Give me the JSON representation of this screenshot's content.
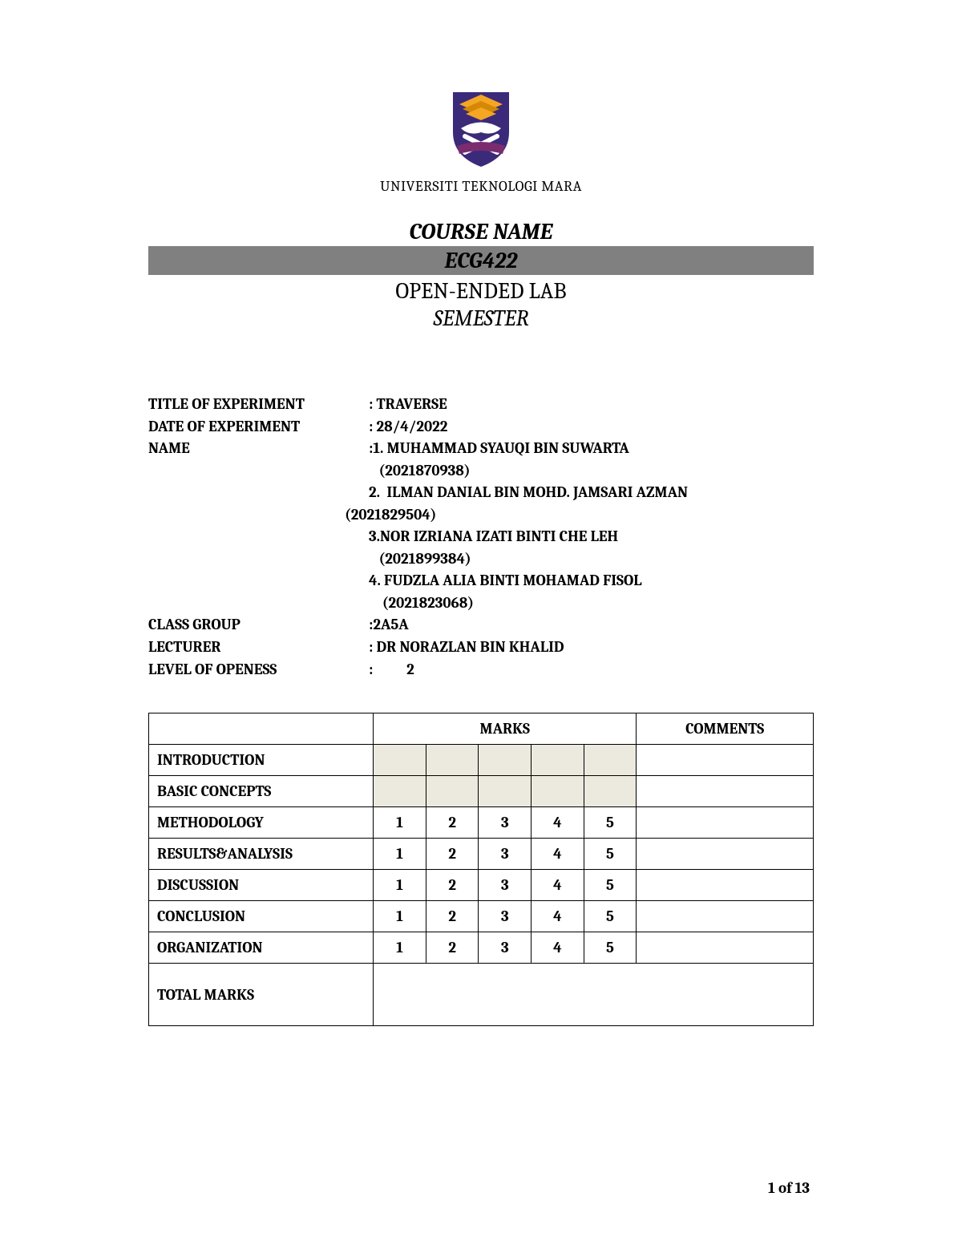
{
  "university_name": "UNIVERSITI TEKNOLOGI MARA",
  "logo": {
    "shield_fill": "#3b2a7a",
    "book_fill": "#f5a623",
    "cross_fill": "#ffffff",
    "banner_fill": "#7a2c6f"
  },
  "header": {
    "course_name_label": "COURSE NAME",
    "course_code": "ECG422",
    "lab_title": "OPEN-ENDED LAB",
    "semester_label": "SEMESTER",
    "bar_bg": "#808080"
  },
  "details": {
    "title_label": "TITLE OF EXPERIMENT",
    "title_value": ": TRAVERSE",
    "date_label": "DATE OF EXPERIMENT",
    "date_value": ": 28/4/2022",
    "name_label": "NAME",
    "name_intro": ":1. MUHAMMAD SYAUQI BIN SUWARTA",
    "names": [
      "   (2021870938)",
      "2.  ILMAN DANIAL BIN MOHD. JAMSARI AZMAN",
      "(2021829504)",
      "3.NOR IZRIANA IZATI BINTI CHE LEH",
      "   (2021899384)",
      "4. FUDZLA ALIA BINTI MOHAMAD FISOL",
      "    (2021823068)"
    ],
    "class_label": "CLASS GROUP",
    "class_value": ":2A5A",
    "lecturer_label": "LECTURER",
    "lecturer_value": ": DR NORAZLAN BIN KHALID",
    "openess_label": "LEVEL OF OPENESS",
    "openess_value": ":          2"
  },
  "table": {
    "marks_header": "MARKS",
    "comments_header": "COMMENTS",
    "shaded_bg": "#ece9de",
    "rows": [
      {
        "criteria": "INTRODUCTION",
        "shaded": true,
        "marks": [
          "",
          "",
          "",
          "",
          ""
        ]
      },
      {
        "criteria": "BASIC CONCEPTS",
        "shaded": true,
        "marks": [
          "",
          "",
          "",
          "",
          ""
        ]
      },
      {
        "criteria": "METHODOLOGY",
        "shaded": false,
        "marks": [
          "1",
          "2",
          "3",
          "4",
          "5"
        ]
      },
      {
        "criteria": "RESULTS&ANALYSIS",
        "shaded": false,
        "marks": [
          "1",
          "2",
          "3",
          "4",
          "5"
        ]
      },
      {
        "criteria": "DISCUSSION",
        "shaded": false,
        "marks": [
          "1",
          "2",
          "3",
          "4",
          "5"
        ]
      },
      {
        "criteria": "CONCLUSION",
        "shaded": false,
        "marks": [
          "1",
          "2",
          "3",
          "4",
          "5"
        ]
      },
      {
        "criteria": "ORGANIZATION",
        "shaded": false,
        "marks": [
          "1",
          "2",
          "3",
          "4",
          "5"
        ]
      }
    ],
    "total_label": "TOTAL MARKS"
  },
  "page_number": "1 of 13"
}
